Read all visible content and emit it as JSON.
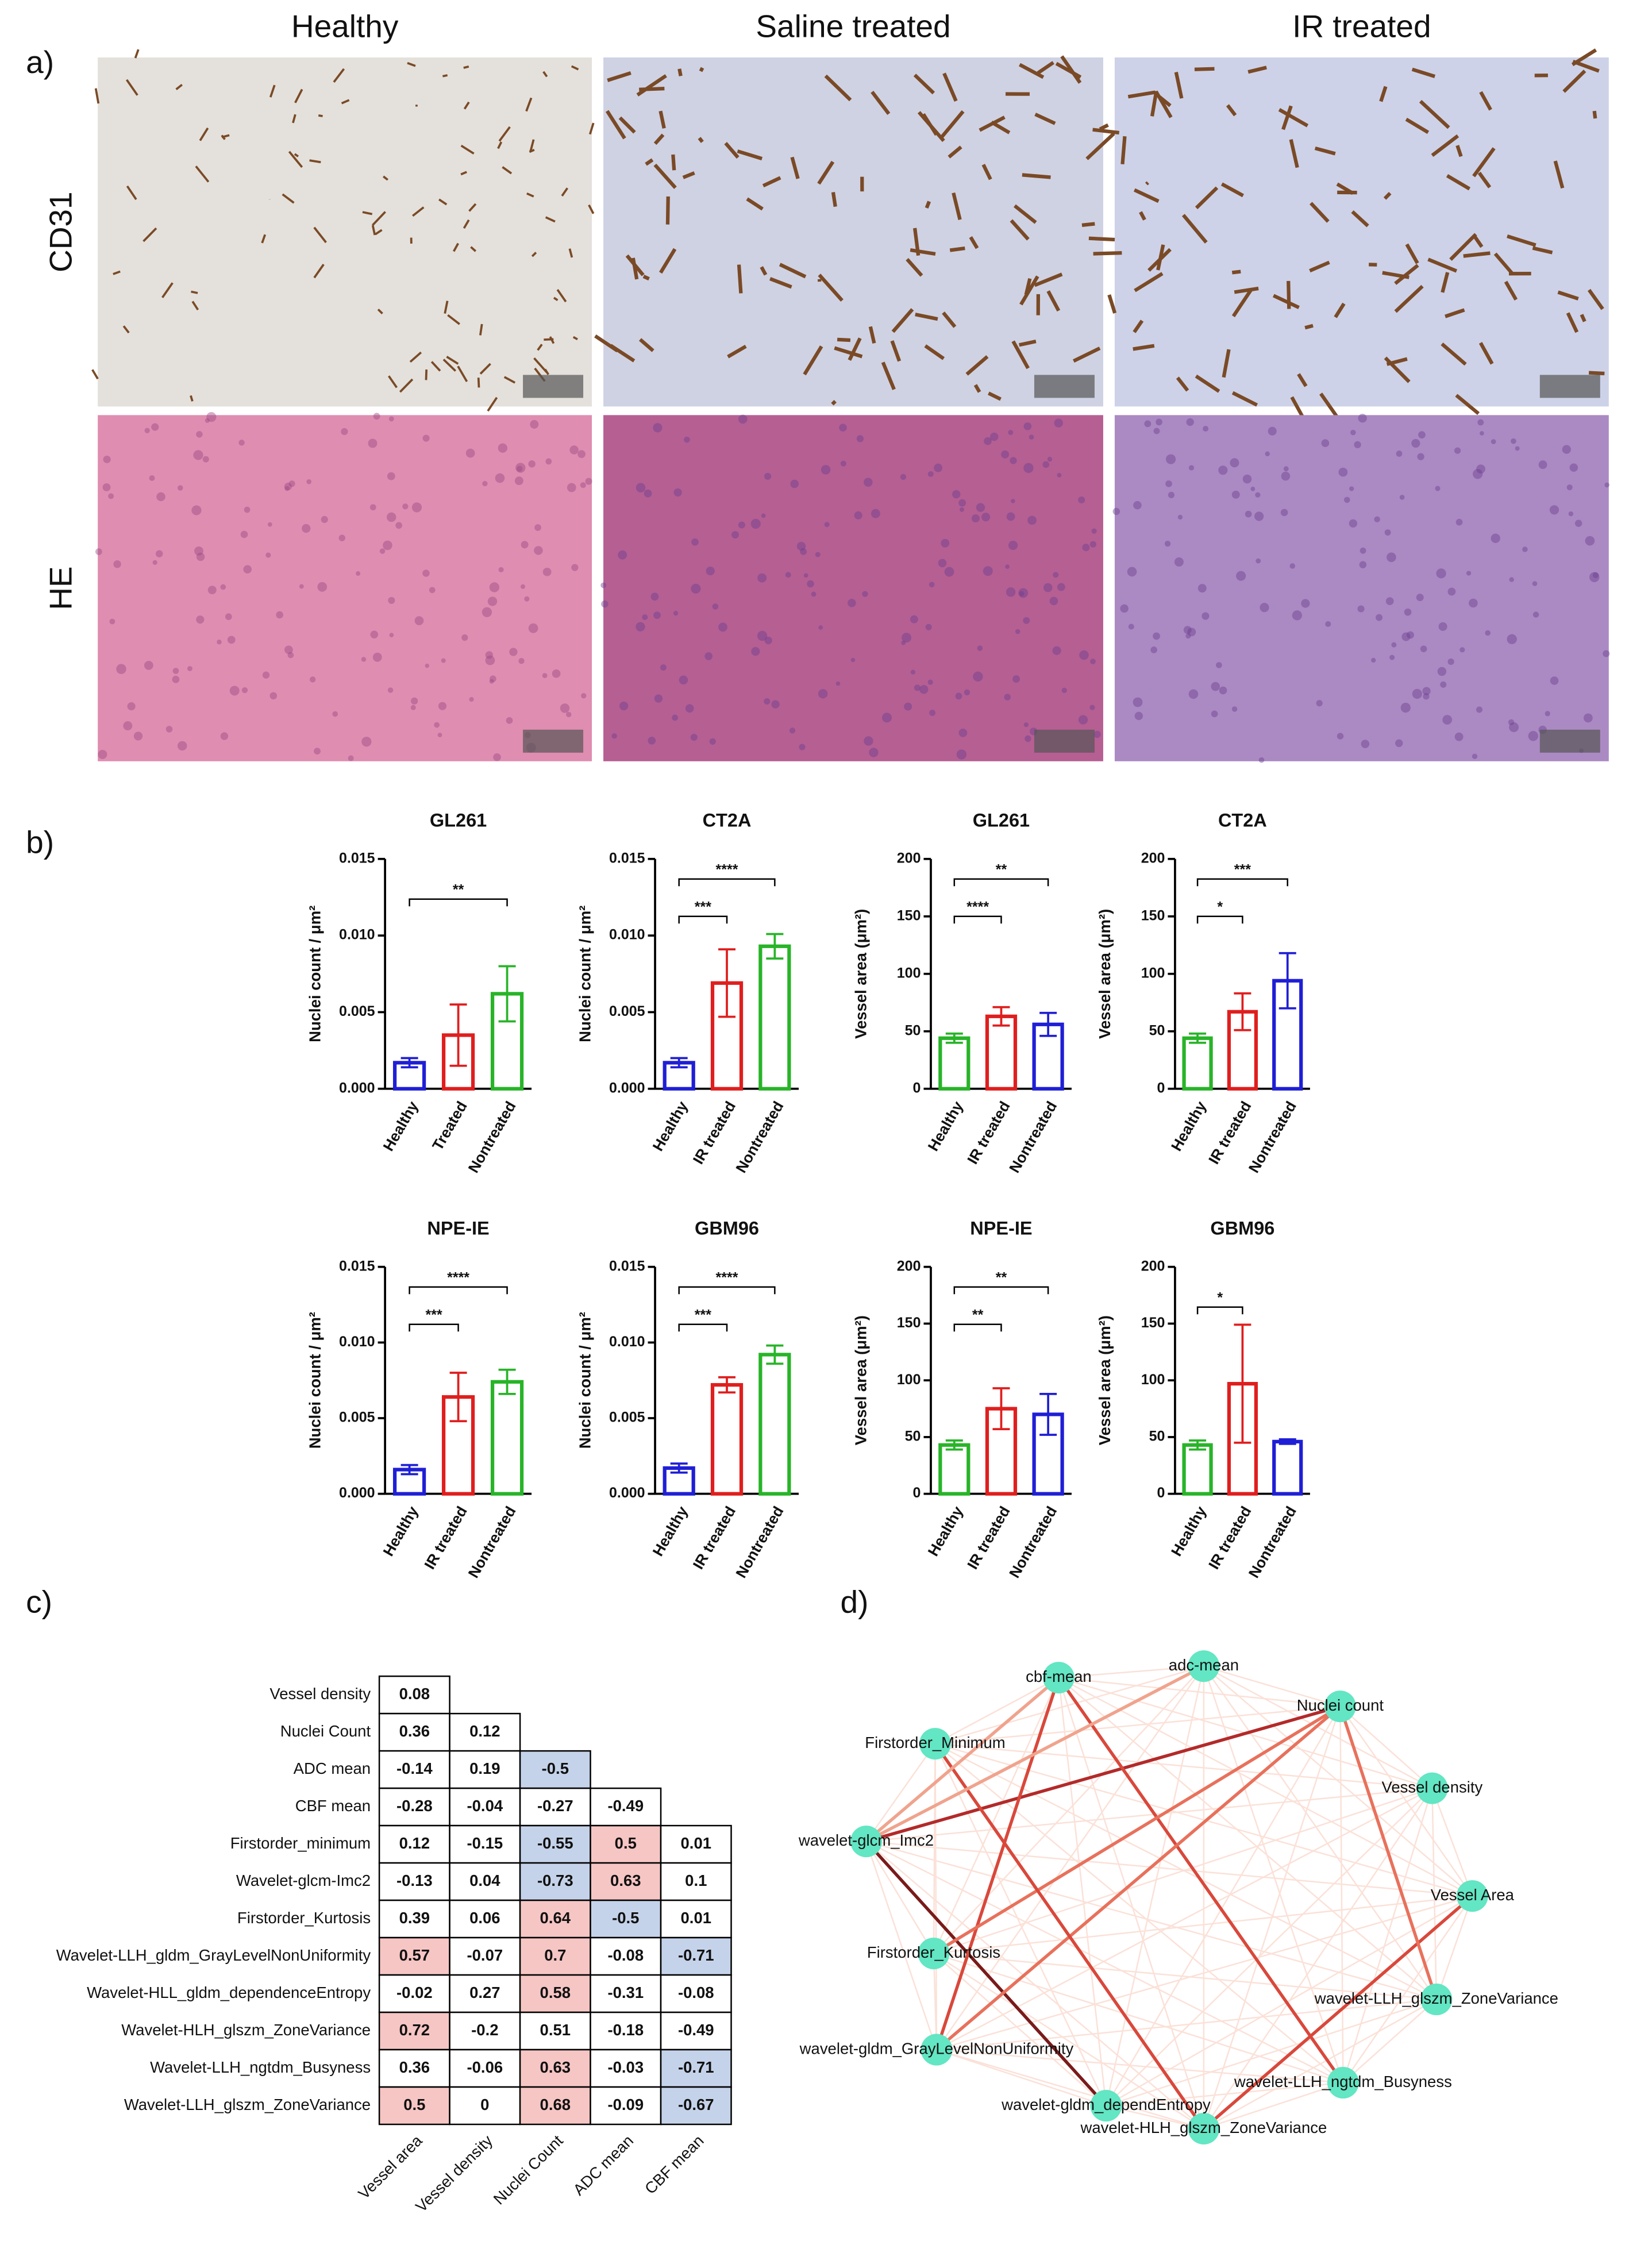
{
  "panel_labels": [
    "a)",
    "b)",
    "c)",
    "d)"
  ],
  "panel_a": {
    "columns": [
      "Healthy",
      "Saline treated",
      "IR treated"
    ],
    "rows": [
      "CD31",
      "HE"
    ]
  },
  "chart_data": [
    {
      "type": "bar",
      "title": "GL261",
      "y_label": "Nuclei count / μm²",
      "categories": [
        "Healthy",
        "Treated",
        "Nontreated"
      ],
      "values": [
        0.0017,
        0.0035,
        0.0062
      ],
      "errors": [
        0.0003,
        0.002,
        0.0018
      ],
      "colors": [
        "#1f1fd6",
        "#e01e1e",
        "#28b428"
      ],
      "ylim": [
        0,
        0.015
      ],
      "yticks": [
        {
          "value": 0,
          "label": "0.000"
        },
        0.005,
        {
          "value": 0.01,
          "label": "0.010"
        },
        0.015
      ],
      "comparisons": [
        {
          "groups": [
            0,
            2
          ],
          "label": "**"
        }
      ]
    },
    {
      "type": "bar",
      "title": "CT2A",
      "y_label": "Nuclei count / μm²",
      "categories": [
        "Healthy",
        "IR treated",
        "Nontreated"
      ],
      "values": [
        0.0017,
        0.0069,
        0.0093
      ],
      "errors": [
        0.0003,
        0.0022,
        0.0008
      ],
      "colors": [
        "#1f1fd6",
        "#e01e1e",
        "#28b428"
      ],
      "ylim": [
        0,
        0.015
      ],
      "yticks": [
        {
          "value": 0,
          "label": "0.000"
        },
        0.005,
        {
          "value": 0.01,
          "label": "0.010"
        },
        0.015
      ],
      "comparisons": [
        {
          "groups": [
            0,
            1
          ],
          "label": "***"
        },
        {
          "groups": [
            0,
            2
          ],
          "label": "****"
        }
      ]
    },
    {
      "type": "bar",
      "title": "GL261",
      "y_label": "Vessel area (μm²)",
      "categories": [
        "Healthy",
        "IR treated",
        "Nontreated"
      ],
      "values": [
        44,
        63,
        56
      ],
      "errors": [
        4,
        8,
        10
      ],
      "colors": [
        "#28b428",
        "#e01e1e",
        "#1f1fd6"
      ],
      "ylim": [
        0,
        200
      ],
      "yticks": [
        0,
        50,
        100,
        150,
        200
      ],
      "comparisons": [
        {
          "groups": [
            0,
            1
          ],
          "label": "****"
        },
        {
          "groups": [
            0,
            2
          ],
          "label": "**"
        }
      ]
    },
    {
      "type": "bar",
      "title": "CT2A",
      "y_label": "Vessel area (μm²)",
      "categories": [
        "Healthy",
        "IR treated",
        "Nontreated"
      ],
      "values": [
        44,
        67,
        94
      ],
      "errors": [
        4,
        16,
        24
      ],
      "colors": [
        "#28b428",
        "#e01e1e",
        "#1f1fd6"
      ],
      "ylim": [
        0,
        200
      ],
      "yticks": [
        0,
        50,
        100,
        150,
        200
      ],
      "comparisons": [
        {
          "groups": [
            0,
            1
          ],
          "label": "*"
        },
        {
          "groups": [
            0,
            2
          ],
          "label": "***"
        }
      ]
    },
    {
      "type": "bar",
      "title": "NPE-IE",
      "y_label": "Nuclei count / μm²",
      "categories": [
        "Healthy",
        "IR treated",
        "Nontreated"
      ],
      "values": [
        0.0016,
        0.0064,
        0.0074
      ],
      "errors": [
        0.0003,
        0.0016,
        0.0008
      ],
      "colors": [
        "#1f1fd6",
        "#e01e1e",
        "#28b428"
      ],
      "ylim": [
        0,
        0.015
      ],
      "yticks": [
        {
          "value": 0,
          "label": "0.000"
        },
        0.005,
        {
          "value": 0.01,
          "label": "0.010"
        },
        0.015
      ],
      "comparisons": [
        {
          "groups": [
            0,
            1
          ],
          "label": "***"
        },
        {
          "groups": [
            0,
            2
          ],
          "label": "****"
        }
      ]
    },
    {
      "type": "bar",
      "title": "GBM96",
      "y_label": "Nuclei count / μm²",
      "categories": [
        "Healthy",
        "IR treated",
        "Nontreated"
      ],
      "values": [
        0.0017,
        0.0072,
        0.0092
      ],
      "errors": [
        0.0003,
        0.0005,
        0.0006
      ],
      "colors": [
        "#1f1fd6",
        "#e01e1e",
        "#28b428"
      ],
      "ylim": [
        0,
        0.015
      ],
      "yticks": [
        {
          "value": 0,
          "label": "0.000"
        },
        0.005,
        {
          "value": 0.01,
          "label": "0.010"
        },
        0.015
      ],
      "comparisons": [
        {
          "groups": [
            0,
            1
          ],
          "label": "***"
        },
        {
          "groups": [
            0,
            2
          ],
          "label": "****"
        }
      ]
    },
    {
      "type": "bar",
      "title": "NPE-IE",
      "y_label": "Vessel area (μm²)",
      "categories": [
        "Healthy",
        "IR treated",
        "Nontreated"
      ],
      "values": [
        43,
        75,
        70
      ],
      "errors": [
        4,
        18,
        18
      ],
      "colors": [
        "#28b428",
        "#e01e1e",
        "#1f1fd6"
      ],
      "ylim": [
        0,
        200
      ],
      "yticks": [
        0,
        50,
        100,
        150,
        200
      ],
      "comparisons": [
        {
          "groups": [
            0,
            1
          ],
          "label": "**"
        },
        {
          "groups": [
            0,
            2
          ],
          "label": "**"
        }
      ]
    },
    {
      "type": "bar",
      "title": "GBM96",
      "y_label": "Vessel area (μm²)",
      "categories": [
        "Healthy",
        "IR treated",
        "Nontreated"
      ],
      "values": [
        43,
        97,
        46
      ],
      "errors": [
        4,
        52,
        2
      ],
      "colors": [
        "#28b428",
        "#e01e1e",
        "#1f1fd6"
      ],
      "ylim": [
        0,
        200
      ],
      "yticks": [
        0,
        50,
        100,
        150,
        200
      ],
      "comparisons": [
        {
          "groups": [
            0,
            1
          ],
          "label": "*"
        }
      ]
    }
  ],
  "panel_c": {
    "row_labels": [
      "Vessel density",
      "Nuclei Count",
      "ADC mean",
      "CBF mean",
      "Firstorder_minimum",
      "Wavelet-glcm-Imc2",
      "Firstorder_Kurtosis",
      "Wavelet-LLH_gldm_GrayLevelNonUniformity",
      "Wavelet-HLL_gldm_dependenceEntropy",
      "Wavelet-HLH_glszm_ZoneVariance",
      "Wavelet-LLH_ngtdm_Busyness",
      "Wavelet-LLH_glszm_ZoneVariance"
    ],
    "column_labels": [
      "Vessel area",
      "Vessel density",
      "Nuclei Count",
      "ADC mean",
      "CBF mean"
    ],
    "values": [
      [
        0.08
      ],
      [
        0.36,
        0.12
      ],
      [
        -0.14,
        0.19,
        -0.5
      ],
      [
        -0.28,
        -0.04,
        -0.27,
        -0.49
      ],
      [
        0.12,
        -0.15,
        -0.55,
        0.5,
        0.01
      ],
      [
        -0.13,
        0.04,
        -0.73,
        0.63,
        0.1
      ],
      [
        0.39,
        0.06,
        0.64,
        -0.5,
        0.01
      ],
      [
        0.57,
        -0.07,
        0.7,
        -0.08,
        -0.71
      ],
      [
        -0.02,
        0.27,
        0.58,
        -0.31,
        -0.08
      ],
      [
        0.72,
        -0.2,
        0.51,
        -0.18,
        -0.49
      ],
      [
        0.36,
        -0.06,
        0.63,
        -0.03,
        -0.71
      ],
      [
        0.5,
        0,
        0.68,
        -0.09,
        -0.67
      ]
    ],
    "colors": [
      [
        "#ffffff"
      ],
      [
        "#ffffff",
        "#ffffff"
      ],
      [
        "#ffffff",
        "#ffffff",
        "#c5d3ea"
      ],
      [
        "#ffffff",
        "#ffffff",
        "#ffffff",
        "#ffffff"
      ],
      [
        "#ffffff",
        "#ffffff",
        "#c5d3ea",
        "#f6c6c4",
        "#ffffff"
      ],
      [
        "#ffffff",
        "#ffffff",
        "#c5d3ea",
        "#f6c6c4",
        "#ffffff"
      ],
      [
        "#ffffff",
        "#ffffff",
        "#f6c6c4",
        "#c5d3ea",
        "#ffffff"
      ],
      [
        "#f6c6c4",
        "#ffffff",
        "#f6c6c4",
        "#ffffff",
        "#c5d3ea"
      ],
      [
        "#ffffff",
        "#ffffff",
        "#f6c6c4",
        "#ffffff",
        "#ffffff"
      ],
      [
        "#f6c6c4",
        "#ffffff",
        "#ffffff",
        "#ffffff",
        "#ffffff"
      ],
      [
        "#ffffff",
        "#ffffff",
        "#f6c6c4",
        "#ffffff",
        "#c5d3ea"
      ],
      [
        "#f6c6c4",
        "#ffffff",
        "#f6c6c4",
        "#ffffff",
        "#c5d3ea"
      ]
    ]
  },
  "panel_d": {
    "nodes": [
      "cbf-mean",
      "adc-mean",
      "Nuclei count",
      "Firstorder_Minimum",
      "Vessel density",
      "wavelet-glcm_Imc2",
      "Vessel Area",
      "Firstorder_Kurtosis",
      "wavelet-LLH_glszm_ZoneVariance",
      "wavelet-gldm_GrayLevelNonUniformity",
      "wavelet-LLH_ngtdm_Busyness",
      "wavelet-gldm_dependEntropy",
      "wavelet-HLH_glszm_ZoneVariance"
    ],
    "node_color": "#62e6c3",
    "edges": [
      {
        "from": 5,
        "to": 2,
        "color": "#b32a2a"
      },
      {
        "from": 5,
        "to": 11,
        "color": "#7a1a1a"
      },
      {
        "from": 0,
        "to": 9,
        "color": "#d9483b"
      },
      {
        "from": 0,
        "to": 10,
        "color": "#d9483b"
      },
      {
        "from": 2,
        "to": 9,
        "color": "#e8715c"
      },
      {
        "from": 2,
        "to": 7,
        "color": "#e8715c"
      },
      {
        "from": 3,
        "to": 12,
        "color": "#d9483b"
      },
      {
        "from": 6,
        "to": 12,
        "color": "#d9483b"
      },
      {
        "from": 2,
        "to": 8,
        "color": "#e8715c"
      },
      {
        "from": 0,
        "to": 5,
        "color": "#f0a38d"
      },
      {
        "from": 1,
        "to": 5,
        "color": "#f0a38d"
      }
    ]
  }
}
